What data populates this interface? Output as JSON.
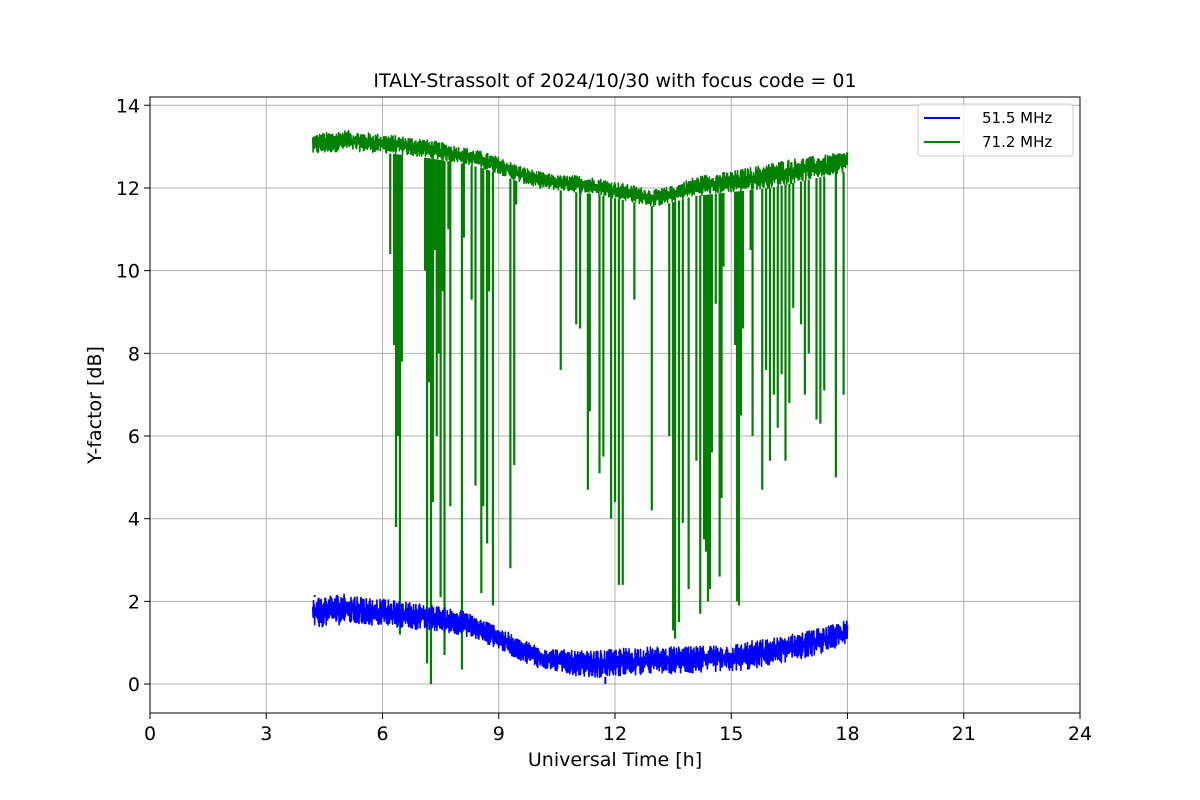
{
  "chart_data": {
    "type": "line",
    "title": "ITALY-Strassolt of 2024/10/30 with focus code = 01",
    "xlabel": "Universal Time [h]",
    "ylabel": "Y-factor [dB]",
    "xlim": [
      0,
      24
    ],
    "ylim": [
      -0.7,
      14.2
    ],
    "xticks": [
      0,
      3,
      6,
      9,
      12,
      15,
      18,
      21,
      24
    ],
    "yticks": [
      0,
      2,
      4,
      6,
      8,
      10,
      12,
      14
    ],
    "grid": true,
    "legend_position": "top-right",
    "series": [
      {
        "name": "51.5 MHz",
        "color": "#0000ff",
        "band": {
          "x": [
            4.2,
            5.0,
            6.0,
            7.0,
            8.0,
            8.5,
            9.0,
            9.5,
            10.0,
            10.5,
            11.0,
            11.5,
            12.0,
            12.5,
            13.0,
            13.5,
            14.0,
            14.5,
            15.0,
            15.5,
            16.0,
            16.5,
            17.0,
            17.5,
            18.0
          ],
          "lower": [
            1.35,
            1.45,
            1.4,
            1.3,
            1.2,
            1.05,
            0.85,
            0.6,
            0.4,
            0.3,
            0.2,
            0.15,
            0.2,
            0.2,
            0.25,
            0.25,
            0.25,
            0.3,
            0.3,
            0.35,
            0.45,
            0.55,
            0.65,
            0.8,
            0.95
          ],
          "upper": [
            2.1,
            2.2,
            2.05,
            1.95,
            1.8,
            1.6,
            1.4,
            1.1,
            0.95,
            0.85,
            0.8,
            0.8,
            0.85,
            0.9,
            0.9,
            0.9,
            0.9,
            0.95,
            0.95,
            1.05,
            1.1,
            1.2,
            1.3,
            1.4,
            1.55
          ]
        },
        "spikes": [
          {
            "x": 4.25,
            "y": 2.15
          },
          {
            "x": 11.75,
            "y": 0.0
          }
        ]
      },
      {
        "name": "71.2 MHz",
        "color": "#008000",
        "band": {
          "x": [
            4.2,
            5.0,
            6.0,
            7.0,
            8.0,
            8.5,
            9.0,
            9.5,
            10.0,
            10.5,
            11.0,
            11.5,
            12.0,
            12.5,
            13.0,
            13.5,
            14.0,
            14.5,
            15.0,
            15.5,
            16.0,
            16.5,
            17.0,
            17.5,
            18.0
          ],
          "lower": [
            12.8,
            12.9,
            12.85,
            12.75,
            12.6,
            12.5,
            12.35,
            12.15,
            12.0,
            11.95,
            11.9,
            11.85,
            11.75,
            11.65,
            11.55,
            11.65,
            11.8,
            11.85,
            11.9,
            11.95,
            12.0,
            12.1,
            12.2,
            12.3,
            12.4
          ],
          "upper": [
            13.3,
            13.4,
            13.3,
            13.2,
            13.0,
            12.9,
            12.75,
            12.55,
            12.4,
            12.3,
            12.3,
            12.25,
            12.15,
            12.05,
            11.95,
            12.05,
            12.25,
            12.35,
            12.4,
            12.5,
            12.6,
            12.7,
            12.75,
            12.8,
            12.9
          ]
        },
        "dips": [
          {
            "x": 6.2,
            "y": 10.4
          },
          {
            "x": 6.3,
            "y": 8.2
          },
          {
            "x": 6.35,
            "y": 3.8
          },
          {
            "x": 6.4,
            "y": 6.0
          },
          {
            "x": 6.45,
            "y": 1.2
          },
          {
            "x": 6.5,
            "y": 7.8
          },
          {
            "x": 7.1,
            "y": 10.0
          },
          {
            "x": 7.15,
            "y": 0.5
          },
          {
            "x": 7.2,
            "y": 7.3
          },
          {
            "x": 7.25,
            "y": 0.0
          },
          {
            "x": 7.3,
            "y": 4.4
          },
          {
            "x": 7.35,
            "y": 10.5
          },
          {
            "x": 7.4,
            "y": 6.0
          },
          {
            "x": 7.45,
            "y": 8.0
          },
          {
            "x": 7.5,
            "y": 2.1
          },
          {
            "x": 7.55,
            "y": 9.5
          },
          {
            "x": 7.6,
            "y": 0.7
          },
          {
            "x": 7.7,
            "y": 11.0
          },
          {
            "x": 7.75,
            "y": 4.3
          },
          {
            "x": 8.05,
            "y": 0.35
          },
          {
            "x": 8.1,
            "y": 10.8
          },
          {
            "x": 8.3,
            "y": 9.3
          },
          {
            "x": 8.4,
            "y": 4.8
          },
          {
            "x": 8.55,
            "y": 2.2
          },
          {
            "x": 8.6,
            "y": 4.3
          },
          {
            "x": 8.7,
            "y": 3.4
          },
          {
            "x": 8.75,
            "y": 9.5
          },
          {
            "x": 8.85,
            "y": 1.9
          },
          {
            "x": 9.3,
            "y": 2.8
          },
          {
            "x": 9.4,
            "y": 5.3
          },
          {
            "x": 9.45,
            "y": 11.6
          },
          {
            "x": 10.6,
            "y": 7.6
          },
          {
            "x": 11.0,
            "y": 8.7
          },
          {
            "x": 11.1,
            "y": 8.6
          },
          {
            "x": 11.3,
            "y": 4.7
          },
          {
            "x": 11.35,
            "y": 6.6
          },
          {
            "x": 11.6,
            "y": 5.1
          },
          {
            "x": 11.7,
            "y": 5.5
          },
          {
            "x": 11.9,
            "y": 4.0
          },
          {
            "x": 12.0,
            "y": 4.4
          },
          {
            "x": 12.1,
            "y": 2.4
          },
          {
            "x": 12.2,
            "y": 2.4
          },
          {
            "x": 12.5,
            "y": 9.3
          },
          {
            "x": 12.95,
            "y": 4.2
          },
          {
            "x": 13.4,
            "y": 6.0
          },
          {
            "x": 13.5,
            "y": 1.3
          },
          {
            "x": 13.55,
            "y": 1.1
          },
          {
            "x": 13.65,
            "y": 1.5
          },
          {
            "x": 13.75,
            "y": 3.9
          },
          {
            "x": 13.9,
            "y": 2.3
          },
          {
            "x": 14.1,
            "y": 5.4
          },
          {
            "x": 14.2,
            "y": 1.7
          },
          {
            "x": 14.3,
            "y": 3.5
          },
          {
            "x": 14.35,
            "y": 3.2
          },
          {
            "x": 14.4,
            "y": 2.0
          },
          {
            "x": 14.45,
            "y": 2.3
          },
          {
            "x": 14.5,
            "y": 5.6
          },
          {
            "x": 14.6,
            "y": 9.2
          },
          {
            "x": 14.7,
            "y": 2.6
          },
          {
            "x": 14.75,
            "y": 4.5
          },
          {
            "x": 14.8,
            "y": 10.1
          },
          {
            "x": 15.1,
            "y": 8.2
          },
          {
            "x": 15.15,
            "y": 2.0
          },
          {
            "x": 15.2,
            "y": 1.9
          },
          {
            "x": 15.25,
            "y": 6.5
          },
          {
            "x": 15.3,
            "y": 8.6
          },
          {
            "x": 15.5,
            "y": 10.5
          },
          {
            "x": 15.55,
            "y": 6.0
          },
          {
            "x": 15.8,
            "y": 4.7
          },
          {
            "x": 15.9,
            "y": 7.6
          },
          {
            "x": 16.0,
            "y": 5.4
          },
          {
            "x": 16.1,
            "y": 7.0
          },
          {
            "x": 16.2,
            "y": 6.2
          },
          {
            "x": 16.3,
            "y": 7.5
          },
          {
            "x": 16.4,
            "y": 5.4
          },
          {
            "x": 16.5,
            "y": 6.8
          },
          {
            "x": 16.6,
            "y": 9.1
          },
          {
            "x": 16.8,
            "y": 8.7
          },
          {
            "x": 16.9,
            "y": 7.0
          },
          {
            "x": 17.0,
            "y": 8.0
          },
          {
            "x": 17.2,
            "y": 6.4
          },
          {
            "x": 17.3,
            "y": 6.3
          },
          {
            "x": 17.4,
            "y": 7.1
          },
          {
            "x": 17.7,
            "y": 5.0
          },
          {
            "x": 17.9,
            "y": 7.0
          }
        ]
      }
    ]
  }
}
